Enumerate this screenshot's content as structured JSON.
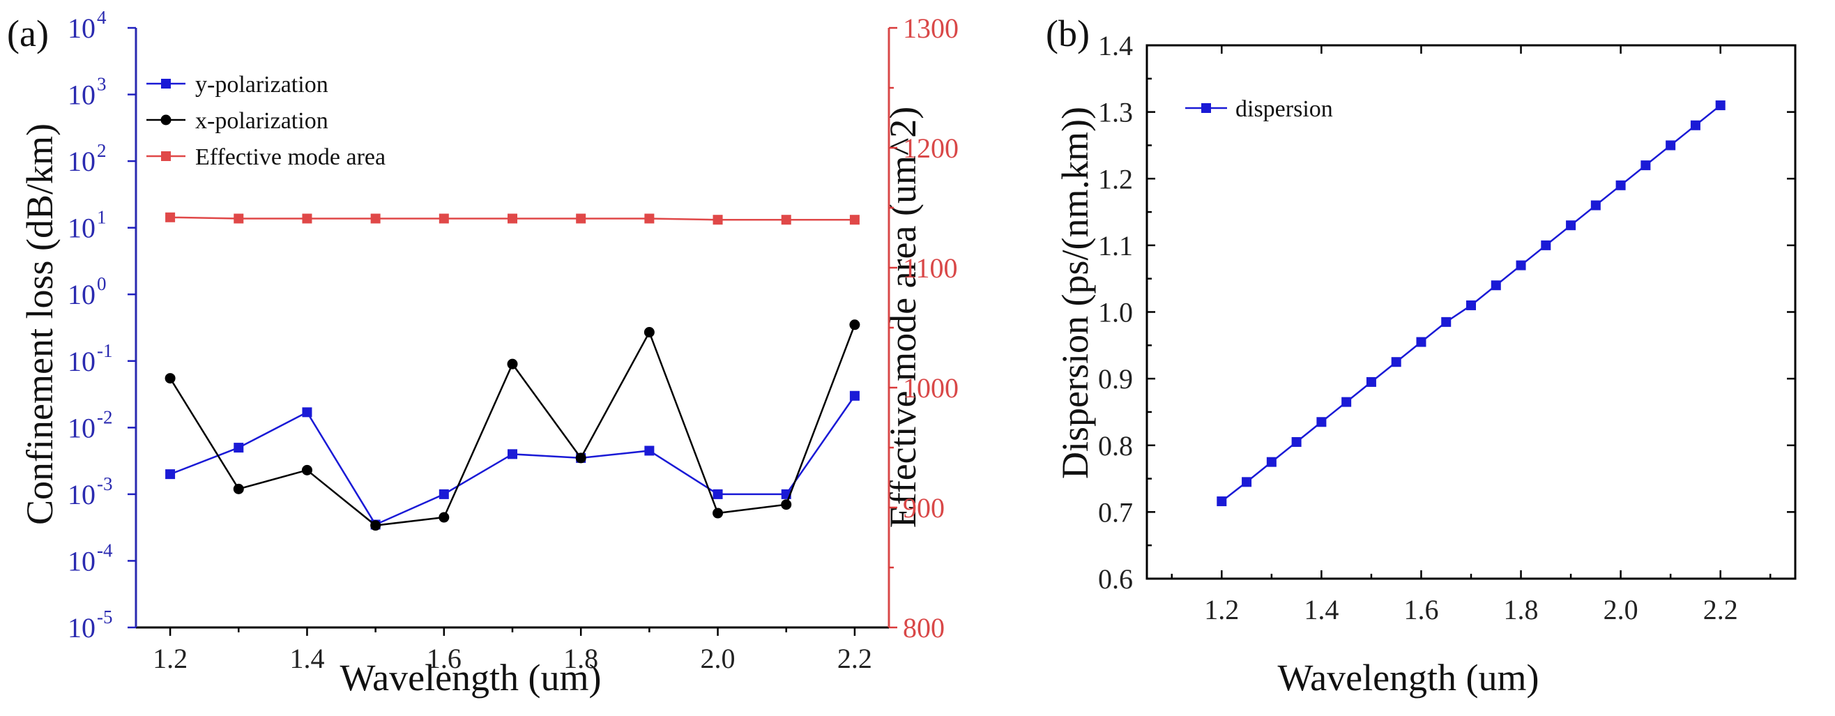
{
  "colors": {
    "y_polarization": "#1a1ad6",
    "x_polarization": "#000000",
    "effective_mode_area": "#e04848",
    "dispersion": "#1a1ad6",
    "left_axis": "#2a2ab0",
    "right_axis": "#d94848"
  },
  "chart_data": [
    {
      "panel_label": "(a)",
      "type": "line",
      "xlabel": "Wavelength (um)",
      "ylabel": "Confinement loss (dB/km)",
      "y2label": "Effective mode area (um^2)",
      "xlim": [
        1.15,
        2.25
      ],
      "x_ticks": [
        {
          "v": 1.2,
          "label": "1.2"
        },
        {
          "v": 1.4,
          "label": "1.4"
        },
        {
          "v": 1.6,
          "label": "1.6"
        },
        {
          "v": 1.8,
          "label": "1.8"
        },
        {
          "v": 2.0,
          "label": "2.0"
        },
        {
          "v": 2.2,
          "label": "2.2"
        }
      ],
      "ylim_log10": [
        -5,
        4
      ],
      "y_ticks": [
        {
          "exp": 4,
          "base": "10",
          "sup": "4"
        },
        {
          "exp": 3,
          "base": "10",
          "sup": "3"
        },
        {
          "exp": 2,
          "base": "10",
          "sup": "2"
        },
        {
          "exp": 1,
          "base": "10",
          "sup": "1"
        },
        {
          "exp": 0,
          "base": "10",
          "sup": "0"
        },
        {
          "exp": -1,
          "base": "10",
          "sup": "-1"
        },
        {
          "exp": -2,
          "base": "10",
          "sup": "-2"
        },
        {
          "exp": -3,
          "base": "10",
          "sup": "-3"
        },
        {
          "exp": -4,
          "base": "10",
          "sup": "-4"
        },
        {
          "exp": -5,
          "base": "10",
          "sup": "-5"
        }
      ],
      "y2lim": [
        800,
        1300
      ],
      "y2_ticks": [
        {
          "v": 800,
          "label": "800"
        },
        {
          "v": 900,
          "label": "900"
        },
        {
          "v": 1000,
          "label": "1000"
        },
        {
          "v": 1100,
          "label": "1100"
        },
        {
          "v": 1200,
          "label": "1200"
        },
        {
          "v": 1300,
          "label": "1300"
        }
      ],
      "x": [
        1.2,
        1.3,
        1.4,
        1.5,
        1.6,
        1.7,
        1.8,
        1.9,
        2.0,
        2.1,
        2.2
      ],
      "series": [
        {
          "name": "y-polarization",
          "axis": "left",
          "marker": "square",
          "color_key": "y_polarization",
          "values": [
            0.002,
            0.005,
            0.017,
            0.00035,
            0.001,
            0.004,
            0.0035,
            0.0045,
            0.001,
            0.001,
            0.03
          ]
        },
        {
          "name": "x-polarization",
          "axis": "left",
          "marker": "circle",
          "color_key": "x_polarization",
          "values": [
            0.055,
            0.0012,
            0.0023,
            0.00034,
            0.00045,
            0.09,
            0.0035,
            0.27,
            0.00052,
            0.0007,
            0.35
          ]
        },
        {
          "name": "Effective mode area",
          "axis": "right",
          "marker": "square",
          "color_key": "effective_mode_area",
          "values": [
            1142,
            1141,
            1141,
            1141,
            1141,
            1141,
            1141,
            1141,
            1140,
            1140,
            1140
          ]
        }
      ],
      "legend": [
        "y-polarization",
        "x-polarization",
        "Effective mode area"
      ],
      "legend_position": "top-left"
    },
    {
      "panel_label": "(b)",
      "type": "line",
      "xlabel": "Wavelength (um)",
      "ylabel": "Dispersion (ps/(nm.km))",
      "xlim": [
        1.05,
        2.35
      ],
      "x_ticks": [
        {
          "v": 1.2,
          "label": "1.2"
        },
        {
          "v": 1.4,
          "label": "1.4"
        },
        {
          "v": 1.6,
          "label": "1.6"
        },
        {
          "v": 1.8,
          "label": "1.8"
        },
        {
          "v": 2.0,
          "label": "2.0"
        },
        {
          "v": 2.2,
          "label": "2.2"
        }
      ],
      "ylim": [
        0.6,
        1.4
      ],
      "y_ticks": [
        {
          "v": 0.6,
          "label": "0.6"
        },
        {
          "v": 0.7,
          "label": "0.7"
        },
        {
          "v": 0.8,
          "label": "0.8"
        },
        {
          "v": 0.9,
          "label": "0.9"
        },
        {
          "v": 1.0,
          "label": "1.0"
        },
        {
          "v": 1.1,
          "label": "1.1"
        },
        {
          "v": 1.2,
          "label": "1.2"
        },
        {
          "v": 1.3,
          "label": "1.3"
        },
        {
          "v": 1.4,
          "label": "1.4"
        }
      ],
      "x": [
        1.2,
        1.25,
        1.3,
        1.35,
        1.4,
        1.45,
        1.5,
        1.55,
        1.6,
        1.65,
        1.7,
        1.75,
        1.8,
        1.85,
        1.9,
        1.95,
        2.0,
        2.05,
        2.1,
        2.15,
        2.2
      ],
      "series": [
        {
          "name": "dispersion",
          "marker": "square",
          "color_key": "dispersion",
          "values": [
            0.716,
            0.745,
            0.775,
            0.805,
            0.835,
            0.865,
            0.895,
            0.925,
            0.955,
            0.985,
            1.01,
            1.04,
            1.07,
            1.1,
            1.13,
            1.16,
            1.19,
            1.22,
            1.25,
            1.28,
            1.31
          ]
        }
      ],
      "legend": [
        "dispersion"
      ],
      "legend_position": "top-left"
    }
  ]
}
